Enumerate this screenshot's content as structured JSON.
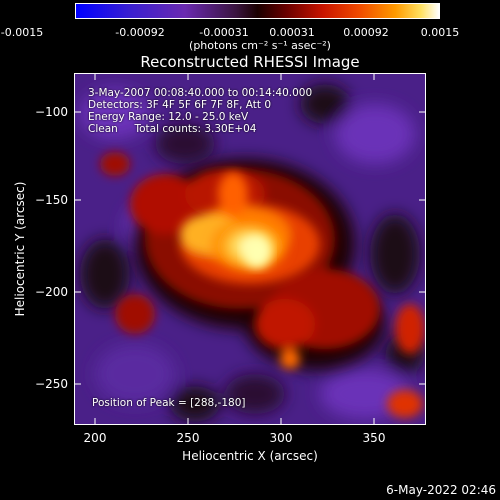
{
  "colorbar": {
    "tick_labels": [
      "-0.0015",
      "-0.00092",
      "-0.00031",
      "0.00031",
      "0.00092",
      "0.0015"
    ],
    "units_label": "(photons cm⁻² s⁻¹ asec⁻²)"
  },
  "plot": {
    "title": "Reconstructed RHESSI Image",
    "x_axis_label": "Heliocentric X (arcsec)",
    "y_axis_label": "Heliocentric Y (arcsec)",
    "x_ticks": [
      "200",
      "250",
      "300",
      "350"
    ],
    "y_ticks": [
      "−100",
      "−150",
      "−200",
      "−250"
    ],
    "x_range": [
      190,
      380
    ],
    "y_range": [
      -275,
      -85
    ],
    "peak_position": [
      288,
      -180
    ]
  },
  "annotations": {
    "time_range": "3-May-2007 00:08:40.000 to 00:14:40.000",
    "detectors": "Detectors: 3F 4F 5F 6F 7F 8F, Att 0",
    "energy": "Energy Range: 12.0 - 25.0 keV",
    "clean": "Clean     Total counts: 3.30E+04",
    "peak": "Position of Peak = [288,-180]"
  },
  "footer": {
    "timestamp": "6-May-2022 02:46"
  },
  "colors": {
    "background": "#000000",
    "text": "#ffffff",
    "negative_purple": "#5a2a9a",
    "positive_red": "#c81400",
    "peak_yellow": "#ffff90"
  }
}
